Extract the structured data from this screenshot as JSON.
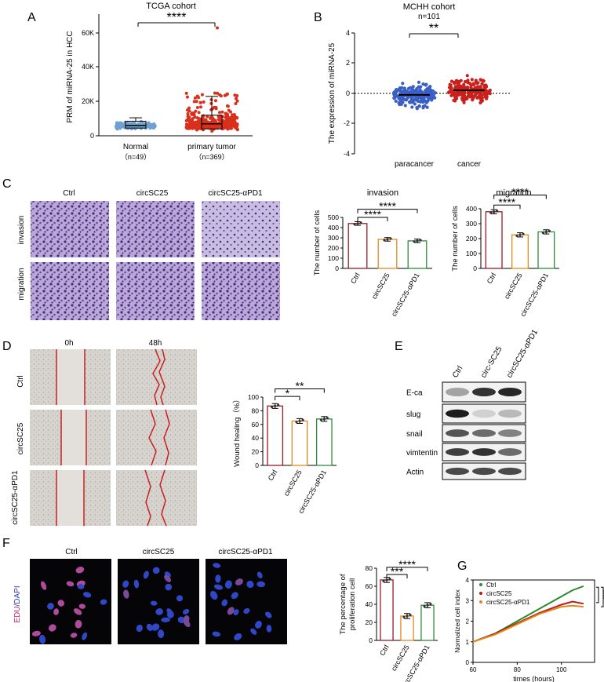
{
  "panels": {
    "A": {
      "letter": "A",
      "title": "TCGA cohort",
      "ylabel": "PRM  of miRNA-25 in HCC",
      "yticks": [
        "0",
        "20K",
        "40K",
        "60K"
      ],
      "groups": [
        {
          "name": "Normal",
          "n": "（n=49）"
        },
        {
          "name": "primary tumor",
          "n": "（n=369）"
        }
      ],
      "sig": "****"
    },
    "B": {
      "letter": "B",
      "title": "MCHH cohort",
      "subtitle": "n=101",
      "ylabel": "The expression of miRNA-25",
      "yticks": [
        "-4",
        "-2",
        "0",
        "2",
        "4"
      ],
      "groups": [
        "paracancer",
        "cancer"
      ],
      "sig": "**"
    },
    "C": {
      "letter": "C",
      "cols": [
        "Ctrl",
        "circSC25",
        "circSC25-αPD1"
      ],
      "rows": [
        "invasion",
        "migration"
      ],
      "inv_title": "invasion",
      "mig_title": "migration",
      "ylabel": "The number of cells",
      "inv_yticks": [
        "0",
        "100",
        "200",
        "300",
        "400",
        "500"
      ],
      "mig_yticks": [
        "0",
        "100",
        "200",
        "300",
        "400"
      ],
      "xcats": [
        "Ctrl",
        "circSC25",
        "circSC25-αPD1"
      ],
      "sig1": "****",
      "sig2": "****"
    },
    "D": {
      "letter": "D",
      "cols": [
        "0h",
        "48h"
      ],
      "rows": [
        "Ctrl",
        "circSC25",
        "circSC25-αPD1"
      ],
      "ylabel": "Wound healing（%）",
      "yticks": [
        "0",
        "20",
        "40",
        "60",
        "80",
        "100"
      ],
      "xcats": [
        "Ctrl",
        "circSC25",
        "circSC25-αPD1"
      ],
      "sig1": "*",
      "sig2": "**"
    },
    "E": {
      "letter": "E",
      "cols": [
        "Ctrl",
        "circ-SC25",
        "circSC25-αPD1"
      ],
      "rows": [
        "E-ca",
        "slug",
        "snail",
        "vimtentin",
        "Actin"
      ]
    },
    "F": {
      "letter": "F",
      "cols": [
        "Ctrl",
        "circSC25",
        "circSC25-αPD1"
      ],
      "row_edu": "EDU",
      "row_dapi": "/DAPI",
      "ylabel1": "The percentage of",
      "ylabel2": "proliferation cell",
      "yticks": [
        "0",
        "20",
        "40",
        "60",
        "80"
      ],
      "xcats": [
        "Ctrl",
        "circSC25",
        "circSC25-αPD1"
      ],
      "sig1": "***",
      "sig2": "****"
    },
    "G": {
      "letter": "G",
      "ylabel": "Normalized cell index",
      "xlabel": "times (hours)",
      "yticks": [
        "0",
        "1",
        "2",
        "3",
        "4"
      ],
      "xticks": [
        "60",
        "80",
        "100"
      ],
      "legend": [
        "Ctrl",
        "circSC25",
        "circSC25-αPD1"
      ],
      "sig1": "****",
      "sig2": "****"
    }
  },
  "colors": {
    "ctrl": "#9c1a2a",
    "circ": "#e08a1e",
    "pd1": "#2f8a3c",
    "normal": "#6fa0d0",
    "tumor": "#d8301c",
    "para": "#3a5fc4",
    "cancer": "#c8201c",
    "g_ctrl": "#2b8a2b",
    "g_circ": "#b51c1c",
    "g_pd1": "#e0881a"
  },
  "chart_data": [
    {
      "type": "scatter",
      "panel": "A",
      "title": "TCGA cohort",
      "ylabel": "PRM  of miRNA-25 in HCC",
      "categories": [
        "Normal",
        "primary tumor"
      ],
      "ylim": [
        0,
        65000
      ],
      "series": [
        {
          "median": 6000,
          "q1": 4500,
          "q3": 8500,
          "min": 2000,
          "max": 10500
        },
        {
          "median": 7000,
          "q1": 4000,
          "q3": 12000,
          "min": 0,
          "max": 23000,
          "outlier_max": 63000
        }
      ]
    },
    {
      "type": "scatter",
      "panel": "B",
      "title": "MCHH cohort",
      "ylabel": "The expression of miRNA-25",
      "categories": [
        "paracancer",
        "cancer"
      ],
      "ylim": [
        -4,
        4
      ],
      "series": [
        {
          "mean": -0.1,
          "min": -2.6,
          "max": 3.3
        },
        {
          "mean": 0.2,
          "min": -1.8,
          "max": 3.3
        }
      ]
    },
    {
      "type": "bar",
      "panel": "C-invasion",
      "categories": [
        "Ctrl",
        "circSC25",
        "circSC25-αPD1"
      ],
      "values": [
        440,
        285,
        270
      ],
      "ylim": [
        0,
        500
      ]
    },
    {
      "type": "bar",
      "panel": "C-migration",
      "categories": [
        "Ctrl",
        "circSC25",
        "circSC25-αPD1"
      ],
      "values": [
        380,
        225,
        245
      ],
      "ylim": [
        0,
        400
      ]
    },
    {
      "type": "bar",
      "panel": "D",
      "categories": [
        "Ctrl",
        "circSC25",
        "circSC25-αPD1"
      ],
      "values": [
        87,
        65,
        68
      ],
      "ylim": [
        0,
        100
      ]
    },
    {
      "type": "bar",
      "panel": "F",
      "categories": [
        "Ctrl",
        "circSC25",
        "circSC25-αPD1"
      ],
      "values": [
        67,
        27,
        39
      ],
      "ylim": [
        0,
        80
      ]
    },
    {
      "type": "line",
      "panel": "G",
      "xlabel": "times (hours)",
      "ylabel": "Normalized cell index",
      "xlim": [
        60,
        115
      ],
      "ylim": [
        0,
        4
      ],
      "x": [
        60,
        70,
        80,
        90,
        100,
        105,
        110
      ],
      "series": [
        {
          "name": "Ctrl",
          "values": [
            1.0,
            1.4,
            2.0,
            2.6,
            3.2,
            3.5,
            3.7
          ]
        },
        {
          "name": "circSC25",
          "values": [
            1.0,
            1.4,
            1.9,
            2.4,
            2.8,
            2.95,
            2.85
          ]
        },
        {
          "name": "circSC25-αPD1",
          "values": [
            1.0,
            1.35,
            1.85,
            2.35,
            2.7,
            2.75,
            2.7
          ]
        }
      ]
    }
  ]
}
